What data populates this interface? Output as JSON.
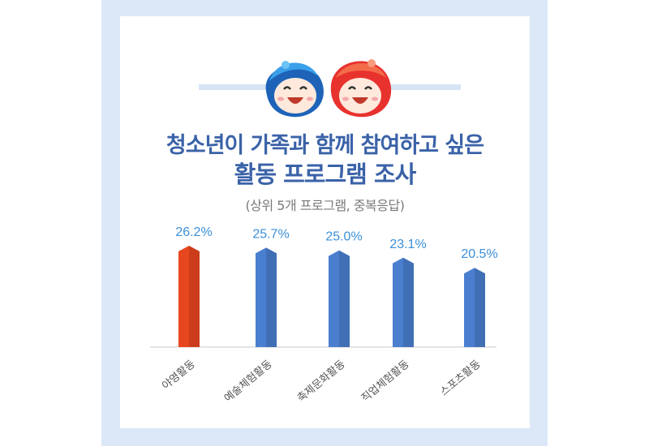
{
  "title_line1": "청소년이 가족과 함께 참여하고 싶은",
  "title_line2": "활동 프로그램 조사",
  "subtitle": "(상위 5개 프로그램, 중복응답)",
  "colors": {
    "highlight": "#e8461e",
    "bar": "#4a7fd0",
    "label": "#3a8fd8",
    "title": "#3a62a8"
  },
  "chart_data": {
    "type": "bar",
    "title": "청소년이 가족과 함께 참여하고 싶은 활동 프로그램 조사",
    "subtitle": "(상위 5개 프로그램, 중복응답)",
    "categories": [
      "야영활동",
      "예술체험활동",
      "축제문화활동",
      "직업체험활동",
      "스포츠활동"
    ],
    "values": [
      26.2,
      25.7,
      25.0,
      23.1,
      20.5
    ],
    "value_labels": [
      "26.2%",
      "25.7%",
      "25.0%",
      "23.1%",
      "20.5%"
    ],
    "unit": "%",
    "ylim": [
      0,
      26.2
    ],
    "grid": false,
    "highlight_index": 0
  }
}
